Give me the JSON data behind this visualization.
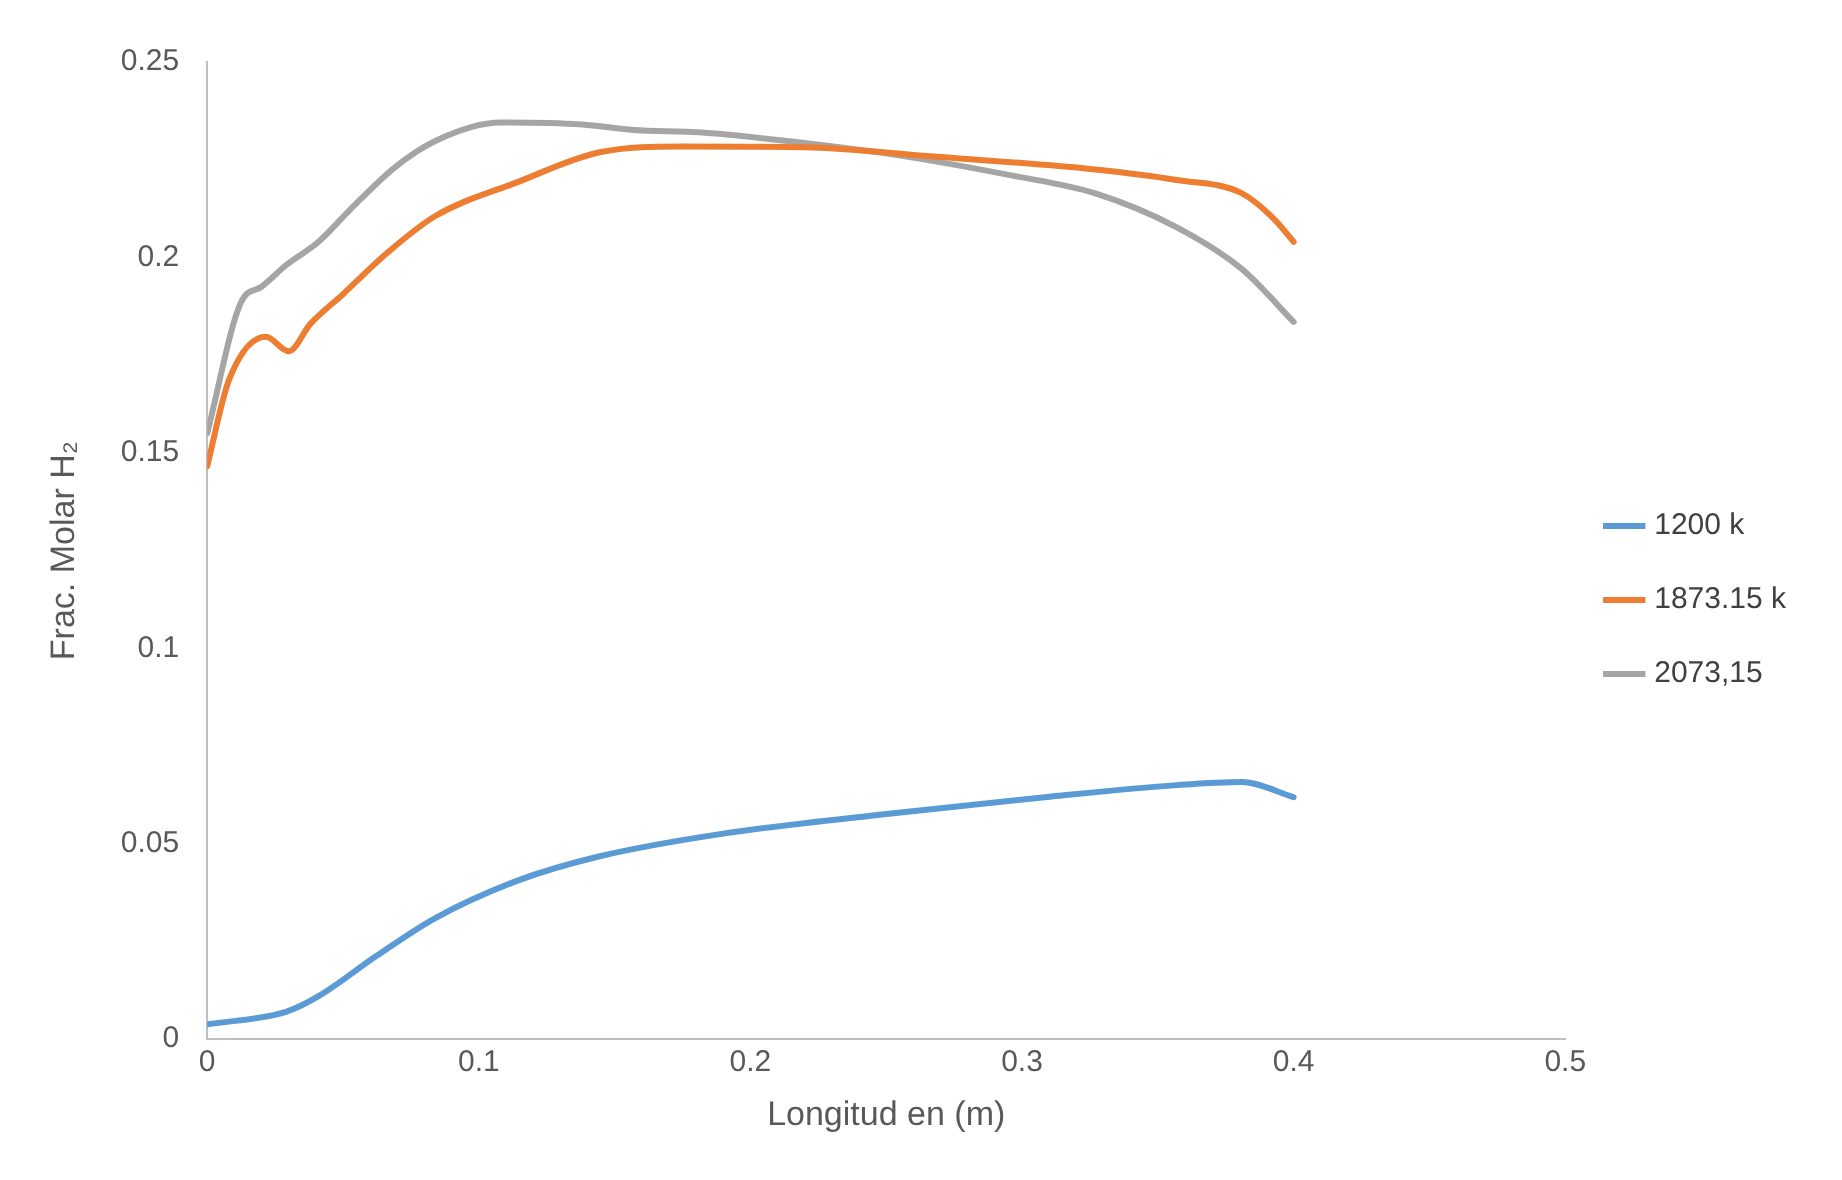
{
  "chart_data": {
    "type": "line",
    "xlabel": "Longitud en (m)",
    "ylabel": "Frac. Molar H₂",
    "xlim": [
      0,
      0.5
    ],
    "xticks": [
      0,
      0.1,
      0.2,
      0.3,
      0.4,
      0.5
    ],
    "ylim": [
      0,
      0.25
    ],
    "yticks": [
      0,
      0.05,
      0.1,
      0.15,
      0.2,
      0.25
    ],
    "grid": false,
    "legend": "right",
    "marker": "none",
    "line_style": "solid",
    "series": [
      {
        "name": "1200 k",
        "color": "#5b9bd5",
        "x": [
          0,
          0.029,
          0.041,
          0.0625,
          0.084,
          0.114,
          0.1445,
          0.19,
          0.251,
          0.311,
          0.357,
          0.381,
          0.4
        ],
        "values": [
          0.0038,
          0.007,
          0.011,
          0.0214,
          0.031,
          0.0405,
          0.0468,
          0.0526,
          0.0577,
          0.0621,
          0.065,
          0.0658,
          0.0619
        ]
      },
      {
        "name": "1873.15 k",
        "color": "#ed7d31",
        "x": [
          0,
          0.008,
          0.0216,
          0.03,
          0.038,
          0.05,
          0.066,
          0.084,
          0.114,
          0.1445,
          0.175,
          0.22,
          0.266,
          0.327,
          0.357,
          0.381,
          0.393,
          0.4
        ],
        "values": [
          0.1466,
          0.1686,
          0.1797,
          0.176,
          0.183,
          0.1906,
          0.201,
          0.2106,
          0.2192,
          0.2269,
          0.2284,
          0.2282,
          0.2259,
          0.2225,
          0.2198,
          0.2164,
          0.2097,
          0.204
        ]
      },
      {
        "name": "2073,15",
        "color": "#a5a5a5",
        "x": [
          0,
          0.0125,
          0.02,
          0.029,
          0.041,
          0.053,
          0.069,
          0.084,
          0.108,
          0.138,
          0.157,
          0.181,
          0.211,
          0.251,
          0.296,
          0.327,
          0.357,
          0.381,
          0.4
        ],
        "values": [
          0.155,
          0.1886,
          0.1925,
          0.198,
          0.204,
          0.2125,
          0.223,
          0.2298,
          0.2345,
          0.234,
          0.2326,
          0.232,
          0.23,
          0.2265,
          0.221,
          0.2164,
          0.2077,
          0.197,
          0.1835
        ]
      }
    ]
  }
}
